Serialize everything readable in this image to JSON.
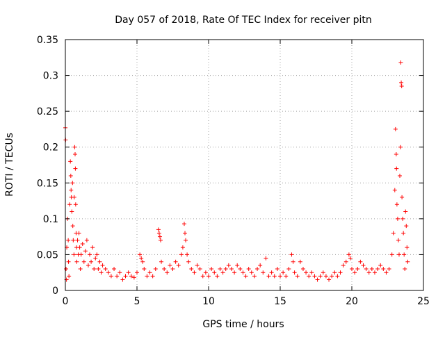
{
  "chart_data": {
    "type": "scatter",
    "title": "Day 057 of 2018, Rate Of TEC Index for receiver pitn",
    "xlabel": "GPS time / hours",
    "ylabel": "ROTI / TECUs",
    "xlim": [
      0,
      25
    ],
    "ylim": [
      0,
      0.35
    ],
    "xticks": [
      0,
      5,
      10,
      15,
      20,
      25
    ],
    "xtick_labels": [
      "0",
      "5",
      "10",
      "15",
      "20",
      "25"
    ],
    "yticks": [
      0,
      0.05,
      0.1,
      0.15,
      0.2,
      0.25,
      0.3,
      0.35
    ],
    "ytick_labels": [
      "0",
      "0.05",
      "0.1",
      "0.15",
      "0.2",
      "0.25",
      "0.3",
      "0.35"
    ],
    "grid": true,
    "marker": "+",
    "color": "#ff0000",
    "points": [
      [
        0.0,
        0.227
      ],
      [
        0.02,
        0.21
      ],
      [
        0.05,
        0.03
      ],
      [
        0.08,
        0.015
      ],
      [
        0.1,
        0.06
      ],
      [
        0.15,
        0.1
      ],
      [
        0.2,
        0.07
      ],
      [
        0.22,
        0.04
      ],
      [
        0.25,
        0.02
      ],
      [
        0.3,
        0.12
      ],
      [
        0.35,
        0.18
      ],
      [
        0.38,
        0.16
      ],
      [
        0.4,
        0.14
      ],
      [
        0.42,
        0.13
      ],
      [
        0.45,
        0.11
      ],
      [
        0.5,
        0.15
      ],
      [
        0.52,
        0.09
      ],
      [
        0.55,
        0.07
      ],
      [
        0.6,
        0.05
      ],
      [
        0.62,
        0.13
      ],
      [
        0.65,
        0.2
      ],
      [
        0.68,
        0.19
      ],
      [
        0.7,
        0.17
      ],
      [
        0.72,
        0.12
      ],
      [
        0.75,
        0.08
      ],
      [
        0.78,
        0.06
      ],
      [
        0.8,
        0.04
      ],
      [
        0.85,
        0.07
      ],
      [
        0.9,
        0.05
      ],
      [
        0.95,
        0.08
      ],
      [
        1.0,
        0.06
      ],
      [
        1.05,
        0.03
      ],
      [
        1.1,
        0.05
      ],
      [
        1.2,
        0.065
      ],
      [
        1.3,
        0.04
      ],
      [
        1.4,
        0.055
      ],
      [
        1.5,
        0.07
      ],
      [
        1.6,
        0.035
      ],
      [
        1.7,
        0.05
      ],
      [
        1.8,
        0.04
      ],
      [
        1.9,
        0.06
      ],
      [
        2.0,
        0.03
      ],
      [
        2.1,
        0.045
      ],
      [
        2.2,
        0.05
      ],
      [
        2.3,
        0.03
      ],
      [
        2.4,
        0.04
      ],
      [
        2.5,
        0.025
      ],
      [
        2.6,
        0.035
      ],
      [
        2.8,
        0.03
      ],
      [
        3.0,
        0.025
      ],
      [
        3.2,
        0.02
      ],
      [
        3.4,
        0.03
      ],
      [
        3.6,
        0.02
      ],
      [
        3.8,
        0.025
      ],
      [
        4.0,
        0.015
      ],
      [
        4.2,
        0.02
      ],
      [
        4.4,
        0.025
      ],
      [
        4.6,
        0.02
      ],
      [
        4.8,
        0.018
      ],
      [
        5.0,
        0.025
      ],
      [
        5.2,
        0.05
      ],
      [
        5.3,
        0.045
      ],
      [
        5.4,
        0.04
      ],
      [
        5.5,
        0.03
      ],
      [
        5.7,
        0.02
      ],
      [
        5.9,
        0.025
      ],
      [
        6.1,
        0.02
      ],
      [
        6.3,
        0.03
      ],
      [
        6.5,
        0.085
      ],
      [
        6.55,
        0.08
      ],
      [
        6.6,
        0.075
      ],
      [
        6.65,
        0.07
      ],
      [
        6.7,
        0.04
      ],
      [
        6.9,
        0.03
      ],
      [
        7.1,
        0.025
      ],
      [
        7.3,
        0.035
      ],
      [
        7.5,
        0.03
      ],
      [
        7.7,
        0.04
      ],
      [
        7.9,
        0.035
      ],
      [
        8.1,
        0.05
      ],
      [
        8.2,
        0.06
      ],
      [
        8.3,
        0.093
      ],
      [
        8.35,
        0.08
      ],
      [
        8.4,
        0.07
      ],
      [
        8.5,
        0.05
      ],
      [
        8.6,
        0.04
      ],
      [
        8.8,
        0.03
      ],
      [
        9.0,
        0.025
      ],
      [
        9.2,
        0.035
      ],
      [
        9.4,
        0.03
      ],
      [
        9.6,
        0.02
      ],
      [
        9.8,
        0.025
      ],
      [
        10.0,
        0.02
      ],
      [
        10.2,
        0.03
      ],
      [
        10.4,
        0.025
      ],
      [
        10.6,
        0.02
      ],
      [
        10.8,
        0.03
      ],
      [
        11.0,
        0.025
      ],
      [
        11.2,
        0.03
      ],
      [
        11.4,
        0.035
      ],
      [
        11.6,
        0.03
      ],
      [
        11.8,
        0.025
      ],
      [
        12.0,
        0.035
      ],
      [
        12.2,
        0.03
      ],
      [
        12.4,
        0.025
      ],
      [
        12.6,
        0.02
      ],
      [
        12.8,
        0.03
      ],
      [
        13.0,
        0.025
      ],
      [
        13.2,
        0.02
      ],
      [
        13.4,
        0.03
      ],
      [
        13.6,
        0.035
      ],
      [
        13.8,
        0.025
      ],
      [
        14.0,
        0.045
      ],
      [
        14.2,
        0.02
      ],
      [
        14.4,
        0.025
      ],
      [
        14.6,
        0.02
      ],
      [
        14.8,
        0.03
      ],
      [
        15.0,
        0.02
      ],
      [
        15.2,
        0.025
      ],
      [
        15.4,
        0.02
      ],
      [
        15.6,
        0.03
      ],
      [
        15.8,
        0.05
      ],
      [
        15.9,
        0.04
      ],
      [
        16.0,
        0.025
      ],
      [
        16.2,
        0.02
      ],
      [
        16.4,
        0.04
      ],
      [
        16.6,
        0.03
      ],
      [
        16.8,
        0.025
      ],
      [
        17.0,
        0.02
      ],
      [
        17.2,
        0.025
      ],
      [
        17.4,
        0.02
      ],
      [
        17.6,
        0.015
      ],
      [
        17.8,
        0.02
      ],
      [
        18.0,
        0.025
      ],
      [
        18.2,
        0.02
      ],
      [
        18.4,
        0.015
      ],
      [
        18.6,
        0.02
      ],
      [
        18.8,
        0.025
      ],
      [
        19.0,
        0.02
      ],
      [
        19.2,
        0.025
      ],
      [
        19.4,
        0.035
      ],
      [
        19.6,
        0.04
      ],
      [
        19.8,
        0.05
      ],
      [
        19.9,
        0.045
      ],
      [
        20.0,
        0.03
      ],
      [
        20.2,
        0.025
      ],
      [
        20.4,
        0.03
      ],
      [
        20.6,
        0.04
      ],
      [
        20.8,
        0.035
      ],
      [
        21.0,
        0.03
      ],
      [
        21.2,
        0.025
      ],
      [
        21.4,
        0.03
      ],
      [
        21.6,
        0.025
      ],
      [
        21.8,
        0.03
      ],
      [
        22.0,
        0.035
      ],
      [
        22.2,
        0.03
      ],
      [
        22.4,
        0.025
      ],
      [
        22.6,
        0.03
      ],
      [
        22.8,
        0.05
      ],
      [
        22.9,
        0.08
      ],
      [
        23.0,
        0.14
      ],
      [
        23.05,
        0.225
      ],
      [
        23.1,
        0.19
      ],
      [
        23.12,
        0.17
      ],
      [
        23.15,
        0.12
      ],
      [
        23.2,
        0.1
      ],
      [
        23.25,
        0.07
      ],
      [
        23.3,
        0.05
      ],
      [
        23.35,
        0.16
      ],
      [
        23.4,
        0.2
      ],
      [
        23.42,
        0.318
      ],
      [
        23.45,
        0.29
      ],
      [
        23.48,
        0.285
      ],
      [
        23.5,
        0.13
      ],
      [
        23.55,
        0.1
      ],
      [
        23.6,
        0.08
      ],
      [
        23.65,
        0.05
      ],
      [
        23.7,
        0.03
      ],
      [
        23.75,
        0.11
      ],
      [
        23.8,
        0.09
      ],
      [
        23.85,
        0.06
      ],
      [
        23.9,
        0.04
      ]
    ]
  }
}
